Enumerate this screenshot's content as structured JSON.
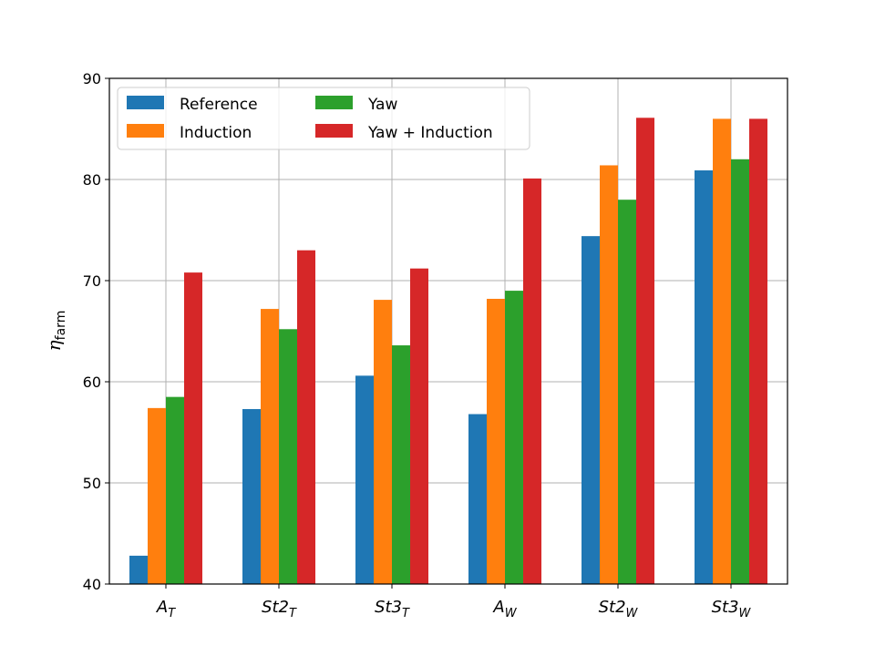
{
  "chart_data": {
    "type": "bar",
    "categories": [
      {
        "base": "A",
        "sub": "T"
      },
      {
        "base": "St2",
        "sub": "T"
      },
      {
        "base": "St3",
        "sub": "T"
      },
      {
        "base": "A",
        "sub": "W"
      },
      {
        "base": "St2",
        "sub": "W"
      },
      {
        "base": "St3",
        "sub": "W"
      }
    ],
    "series": [
      {
        "name": "Reference",
        "color": "#1f77b4",
        "values": [
          42.8,
          57.3,
          60.6,
          56.8,
          74.4,
          80.9
        ]
      },
      {
        "name": "Induction",
        "color": "#ff7f0e",
        "values": [
          57.4,
          67.2,
          68.1,
          68.2,
          81.4,
          86.0
        ]
      },
      {
        "name": "Yaw",
        "color": "#2ca02c",
        "values": [
          58.5,
          65.2,
          63.6,
          69.0,
          78.0,
          82.0
        ]
      },
      {
        "name": "Yaw + Induction",
        "color": "#d62728",
        "values": [
          70.8,
          73.0,
          71.2,
          80.1,
          86.1,
          86.0
        ]
      }
    ],
    "ylabel": {
      "base": "η",
      "sub": "farm"
    },
    "xlabel": "",
    "ylim": [
      40,
      90
    ],
    "yticks": [
      40,
      50,
      60,
      70,
      80,
      90
    ],
    "grid": true,
    "legend": {
      "placement": "top-left",
      "columns": 2
    }
  }
}
